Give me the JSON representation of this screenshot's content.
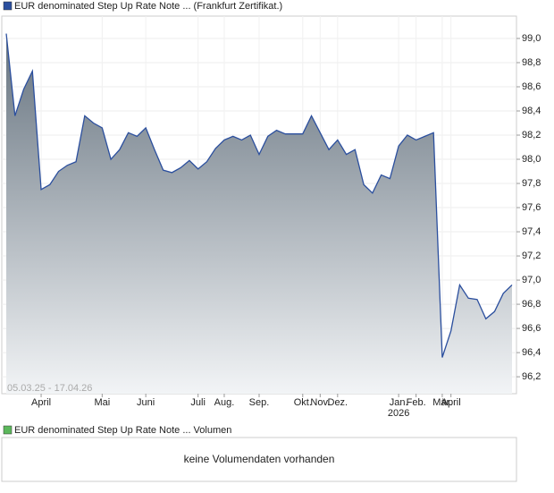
{
  "chart_data": {
    "type": "area",
    "title": "EUR denominated Step Up Rate Note ... (Frankfurt Zertifikat.)",
    "range_label": "05.03.25 - 17.04.26",
    "series": [
      {
        "name": "EUR denominated Step Up Rate Note ... (Frankfurt Zertifikat.)",
        "color": "#2b4f9e",
        "values": [
          99.04,
          98.36,
          98.58,
          98.73,
          97.75,
          97.79,
          97.9,
          97.95,
          97.98,
          98.36,
          98.3,
          98.26,
          98.0,
          98.08,
          98.22,
          98.19,
          98.26,
          98.08,
          97.91,
          97.89,
          97.93,
          97.99,
          97.92,
          97.98,
          98.09,
          98.16,
          98.19,
          98.16,
          98.2,
          98.04,
          98.19,
          98.24,
          98.21,
          98.21,
          98.21,
          98.36,
          98.22,
          98.08,
          98.16,
          98.04,
          98.08,
          97.79,
          97.72,
          97.87,
          97.84,
          98.11,
          98.2,
          98.16,
          98.19,
          98.22,
          96.36,
          96.58,
          96.96,
          96.85,
          96.84,
          96.68,
          96.74,
          96.89,
          96.96
        ]
      }
    ],
    "xlim": [
      0,
      58
    ],
    "xticks": [
      {
        "value": 4,
        "label": "April"
      },
      {
        "value": 11,
        "label": "Mai"
      },
      {
        "value": 16,
        "label": "Juni"
      },
      {
        "value": 22,
        "label": "Juli"
      },
      {
        "value": 25,
        "label": "Aug."
      },
      {
        "value": 29,
        "label": "Sep."
      },
      {
        "value": 34,
        "label": "Okt."
      },
      {
        "value": 36,
        "label": "Nov."
      },
      {
        "value": 38,
        "label": "Dez."
      },
      {
        "value": 45,
        "label": "Jan.",
        "sublabel": "2026"
      },
      {
        "value": 47,
        "label": "Feb."
      },
      {
        "value": 50,
        "label": "Mär."
      },
      {
        "value": 51,
        "label": "April"
      }
    ],
    "ylim": [
      96.06,
      99.185
    ],
    "yticks": [
      {
        "value": 99.0,
        "label": "99,0"
      },
      {
        "value": 98.8,
        "label": "98,8"
      },
      {
        "value": 98.6,
        "label": "98,6"
      },
      {
        "value": 98.4,
        "label": "98,4"
      },
      {
        "value": 98.2,
        "label": "98,2"
      },
      {
        "value": 98.0,
        "label": "98,0"
      },
      {
        "value": 97.8,
        "label": "97,8"
      },
      {
        "value": 97.6,
        "label": "97,6"
      },
      {
        "value": 97.4,
        "label": "97,4"
      },
      {
        "value": 97.2,
        "label": "97,2"
      },
      {
        "value": 97.0,
        "label": "97,0"
      },
      {
        "value": 96.8,
        "label": "96,8"
      },
      {
        "value": 96.6,
        "label": "96,6"
      },
      {
        "value": 96.4,
        "label": "96,4"
      },
      {
        "value": 96.2,
        "label": "96,2"
      }
    ],
    "grid": true
  },
  "volume_panel": {
    "legend": "EUR denominated Step Up Rate Note ... Volumen",
    "legend_color": "#5cb85c",
    "message": "keine Volumendaten vorhanden"
  }
}
